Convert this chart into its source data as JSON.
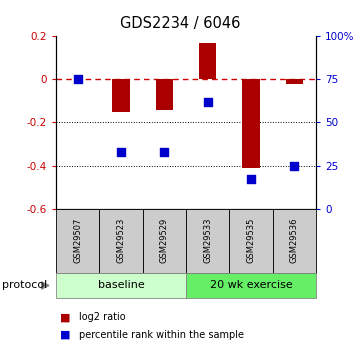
{
  "title": "GDS2234 / 6046",
  "samples": [
    "GSM29507",
    "GSM29523",
    "GSM29529",
    "GSM29533",
    "GSM29535",
    "GSM29536"
  ],
  "log2_ratio": [
    0.0,
    -0.15,
    -0.14,
    0.17,
    -0.41,
    -0.02
  ],
  "percentile_rank_pct": [
    75,
    33,
    33,
    62,
    17,
    25
  ],
  "ylim_left": [
    -0.6,
    0.2
  ],
  "ylim_right": [
    0,
    100
  ],
  "groups": [
    {
      "label": "baseline",
      "n": 3,
      "color": "#ccffcc"
    },
    {
      "label": "20 wk exercise",
      "n": 3,
      "color": "#66ee66"
    }
  ],
  "bar_color": "#aa0000",
  "dot_color": "#0000cc",
  "dashed_line_color": "#cc0000",
  "dotted_line_color": "#000000",
  "sample_box_color": "#cccccc",
  "legend_red_label": "log2 ratio",
  "legend_blue_label": "percentile rank within the sample",
  "protocol_label": "protocol",
  "yticks_left": [
    0.2,
    0.0,
    -0.2,
    -0.4,
    -0.6
  ],
  "ytick_left_labels": [
    "0.2",
    "0",
    "-0.2",
    "-0.4",
    "-0.6"
  ],
  "yticks_right_vals": [
    100,
    75,
    50,
    25,
    0
  ],
  "ytick_right_labels": [
    "100%",
    "75",
    "50",
    "25",
    "0"
  ],
  "bar_width": 0.4,
  "dot_size": 28
}
